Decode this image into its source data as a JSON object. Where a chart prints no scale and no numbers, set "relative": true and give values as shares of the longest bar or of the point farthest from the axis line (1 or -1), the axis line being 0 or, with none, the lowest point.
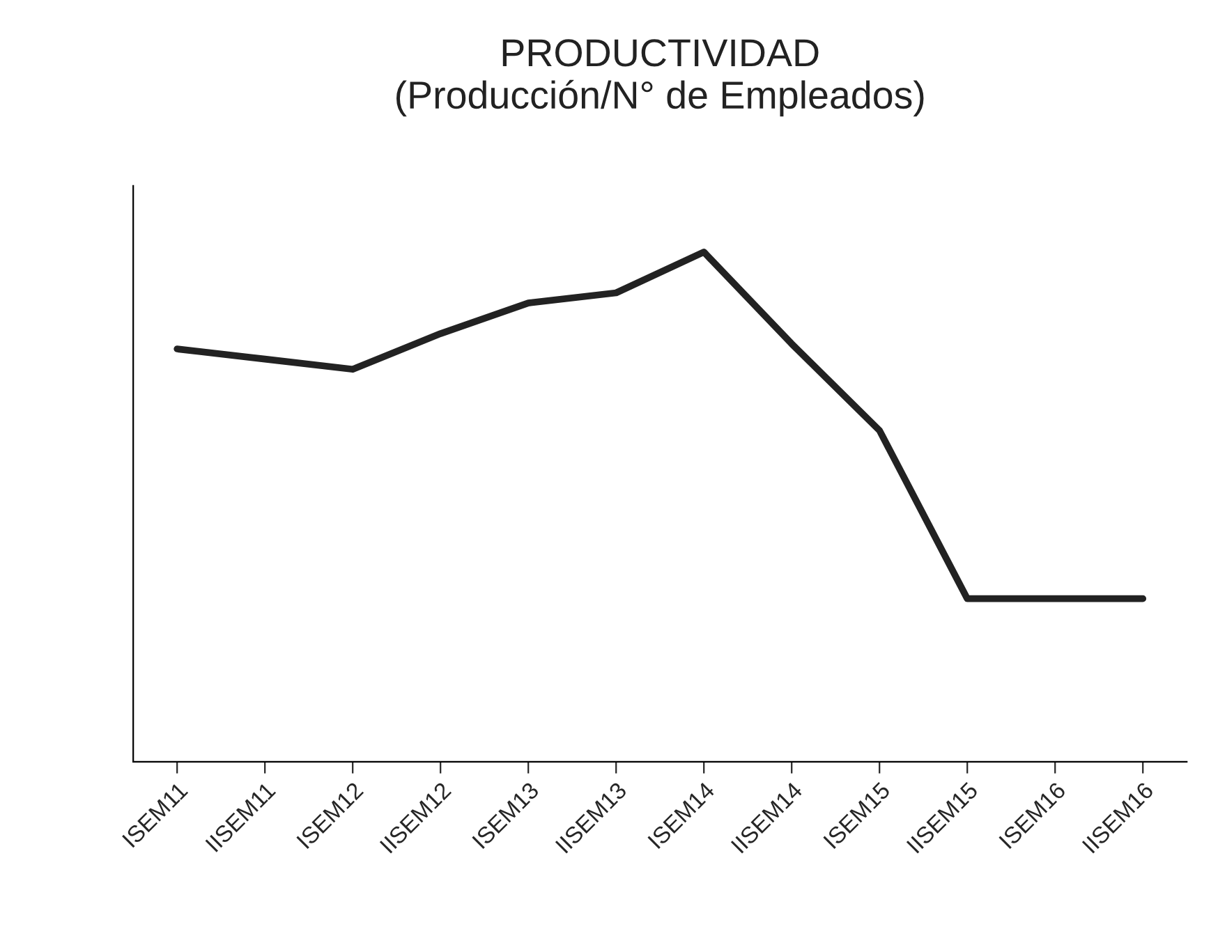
{
  "chart_data": {
    "type": "line",
    "title": "PRODUCTIVIDAD\n(Producción/N° de Empleados)",
    "categories": [
      "ISEM11",
      "IISEM11",
      "ISEM12",
      "IISEM12",
      "ISEM13",
      "IISEM13",
      "ISEM14",
      "IISEM14",
      "ISEM15",
      "IISEM15",
      "ISEM16",
      "IISEM16"
    ],
    "series": [
      {
        "color": "#222222",
        "values": [
          0.81,
          0.79,
          0.77,
          0.84,
          0.9,
          0.92,
          1,
          0.82,
          0.65,
          0.32,
          0.32,
          0.32
        ]
      }
    ],
    "relative": true,
    "grid": false,
    "marker": "none",
    "line_style": "solid"
  }
}
